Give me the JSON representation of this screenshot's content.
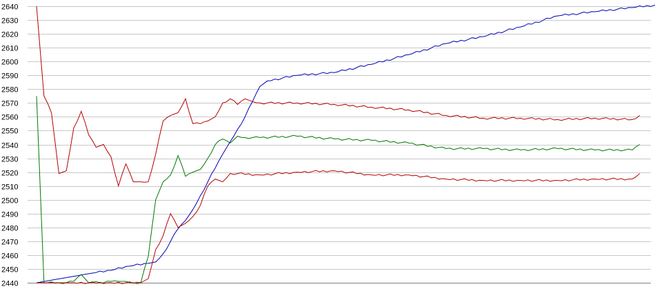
{
  "chart_data": {
    "type": "line",
    "title": "",
    "xlabel": "",
    "ylabel": "",
    "ylim": [
      2440,
      2640
    ],
    "y_ticks": [
      2440,
      2450,
      2460,
      2470,
      2480,
      2490,
      2500,
      2510,
      2520,
      2530,
      2540,
      2550,
      2560,
      2570,
      2580,
      2590,
      2600,
      2610,
      2620,
      2630,
      2640
    ],
    "y_tick_labels": [
      "2440",
      "2450",
      "2460",
      "2470",
      "2480",
      "2490",
      "2500",
      "2510",
      "2520",
      "2530",
      "2540",
      "2550",
      "2560",
      "2570",
      "2580",
      "2590",
      "2600",
      "2610",
      "2620",
      "2630",
      "2640"
    ],
    "grid": true,
    "legend": "none",
    "x_count": 121,
    "series": [
      {
        "color": "#0000b4",
        "points": [
          [
            0,
            2440
          ],
          [
            15,
            2447
          ],
          [
            20,
            2449
          ],
          [
            25,
            2452
          ],
          [
            30,
            2454
          ],
          [
            32,
            2455
          ],
          [
            34,
            2461
          ],
          [
            36,
            2470
          ],
          [
            38,
            2479
          ],
          [
            40,
            2485
          ],
          [
            42,
            2493
          ],
          [
            44,
            2503
          ],
          [
            46,
            2513
          ],
          [
            48,
            2523
          ],
          [
            50,
            2533
          ],
          [
            52,
            2542
          ],
          [
            54,
            2551
          ],
          [
            56,
            2560
          ],
          [
            58,
            2571
          ],
          [
            60,
            2582
          ],
          [
            62,
            2586
          ],
          [
            66,
            2588
          ],
          [
            70,
            2590
          ],
          [
            80,
            2592
          ],
          [
            90,
            2598
          ],
          [
            100,
            2605
          ],
          [
            110,
            2613
          ],
          [
            120,
            2618
          ],
          [
            130,
            2625
          ],
          [
            140,
            2633
          ],
          [
            150,
            2636
          ],
          [
            160,
            2639
          ],
          [
            167,
            2641
          ]
        ]
      },
      {
        "color": "#b40000",
        "points": [
          [
            0,
            2640
          ],
          [
            2,
            2575
          ],
          [
            4,
            2563
          ],
          [
            6,
            2519
          ],
          [
            8,
            2521
          ],
          [
            10,
            2552
          ],
          [
            12,
            2564
          ],
          [
            14,
            2547
          ],
          [
            16,
            2538
          ],
          [
            18,
            2540
          ],
          [
            20,
            2531
          ],
          [
            22,
            2510
          ],
          [
            24,
            2526
          ],
          [
            26,
            2513
          ],
          [
            28,
            2513
          ],
          [
            30,
            2513
          ],
          [
            32,
            2533
          ],
          [
            34,
            2557
          ],
          [
            36,
            2561
          ],
          [
            38,
            2563
          ],
          [
            40,
            2573
          ],
          [
            42,
            2555
          ],
          [
            44,
            2555
          ],
          [
            46,
            2557
          ],
          [
            48,
            2560
          ],
          [
            50,
            2570
          ],
          [
            52,
            2573
          ],
          [
            54,
            2569
          ],
          [
            56,
            2573
          ],
          [
            58,
            2571
          ],
          [
            60,
            2570
          ],
          [
            70,
            2570
          ],
          [
            80,
            2569
          ],
          [
            90,
            2567
          ],
          [
            100,
            2565
          ],
          [
            110,
            2561
          ],
          [
            120,
            2559
          ],
          [
            130,
            2559
          ],
          [
            140,
            2558
          ],
          [
            150,
            2559
          ],
          [
            160,
            2558
          ],
          [
            162,
            2561
          ]
        ]
      },
      {
        "color": "#007800",
        "points": [
          [
            0,
            2575
          ],
          [
            2,
            2440
          ],
          [
            6,
            2440
          ],
          [
            8,
            2440
          ],
          [
            10,
            2441
          ],
          [
            12,
            2446
          ],
          [
            14,
            2440
          ],
          [
            16,
            2441
          ],
          [
            18,
            2440
          ],
          [
            20,
            2441
          ],
          [
            22,
            2441
          ],
          [
            24,
            2441
          ],
          [
            26,
            2440
          ],
          [
            28,
            2440
          ],
          [
            30,
            2459
          ],
          [
            32,
            2500
          ],
          [
            34,
            2513
          ],
          [
            36,
            2518
          ],
          [
            38,
            2532
          ],
          [
            40,
            2517
          ],
          [
            42,
            2520
          ],
          [
            44,
            2522
          ],
          [
            46,
            2530
          ],
          [
            48,
            2540
          ],
          [
            50,
            2544
          ],
          [
            52,
            2541
          ],
          [
            54,
            2546
          ],
          [
            56,
            2545
          ],
          [
            60,
            2545
          ],
          [
            70,
            2546
          ],
          [
            80,
            2544
          ],
          [
            90,
            2543
          ],
          [
            100,
            2541
          ],
          [
            110,
            2537
          ],
          [
            120,
            2537
          ],
          [
            130,
            2536
          ],
          [
            140,
            2537
          ],
          [
            150,
            2536
          ],
          [
            160,
            2536
          ],
          [
            162,
            2540
          ]
        ]
      },
      {
        "color": "#b40000",
        "points": [
          [
            0,
            2440
          ],
          [
            10,
            2440
          ],
          [
            20,
            2440
          ],
          [
            28,
            2440
          ],
          [
            30,
            2443
          ],
          [
            32,
            2464
          ],
          [
            34,
            2474
          ],
          [
            36,
            2490
          ],
          [
            38,
            2480
          ],
          [
            40,
            2483
          ],
          [
            42,
            2488
          ],
          [
            44,
            2496
          ],
          [
            46,
            2510
          ],
          [
            48,
            2515
          ],
          [
            50,
            2513
          ],
          [
            52,
            2519
          ],
          [
            54,
            2519
          ],
          [
            60,
            2518
          ],
          [
            70,
            2520
          ],
          [
            80,
            2521
          ],
          [
            90,
            2518
          ],
          [
            100,
            2518
          ],
          [
            110,
            2515
          ],
          [
            120,
            2514
          ],
          [
            130,
            2514
          ],
          [
            140,
            2514
          ],
          [
            150,
            2515
          ],
          [
            160,
            2515
          ],
          [
            162,
            2519
          ]
        ]
      }
    ]
  }
}
